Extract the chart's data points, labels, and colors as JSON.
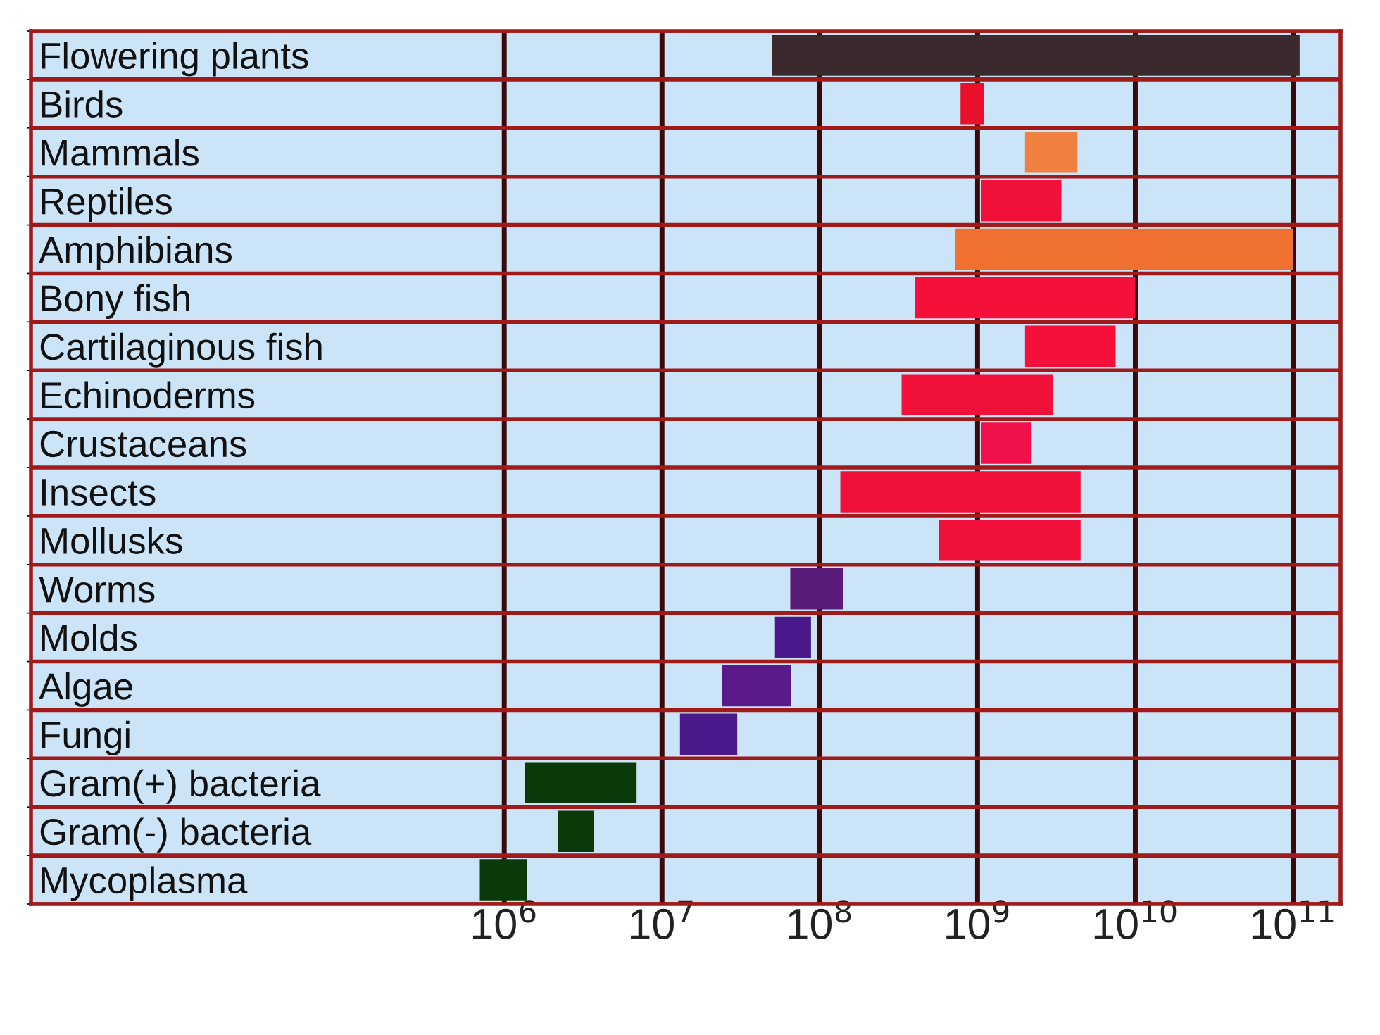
{
  "chart_data": {
    "type": "bar",
    "orientation": "horizontal",
    "log": "x",
    "categories": [
      "Flowering plants",
      "Birds",
      "Mammals",
      "Reptiles",
      "Amphibians",
      "Bony fish",
      "Cartilaginous fish",
      "Echinoderms",
      "Crustaceans",
      "Insects",
      "Mollusks",
      "Worms",
      "Molds",
      "Algae",
      "Fungi",
      "Gram(+) bacteria",
      "Gram(-) bacteria",
      "Mycoplasma"
    ],
    "base": [
      50000000,
      780000000,
      2000000000,
      1050000000,
      720000000,
      400000000,
      2000000000,
      330000000,
      1050000000,
      135000000,
      570000000,
      65000000,
      52000000,
      24000000,
      13000000,
      1350000,
      2200000,
      700000
    ],
    "values": [
      110000000000,
      320000000,
      2300000000,
      2350000000,
      99280000000,
      9600000000,
      5500000000,
      2670000000,
      1150000000,
      4365000000,
      3930000000,
      75000000,
      36000000,
      42000000,
      17000000,
      5550000,
      1500000,
      700000
    ],
    "colors": [
      "#3a2a2e",
      "#e8102a",
      "#f08040",
      "#f0103a",
      "#f07030",
      "#f5103a",
      "#f5103a",
      "#f0103a",
      "#f0104a",
      "#f0103a",
      "#f0103a",
      "#5a1a7a",
      "#4a1a8a",
      "#5a1a8a",
      "#4a1a8a",
      "#0a3a0a",
      "#0a3a0a",
      "#0a3a0a"
    ],
    "xlim": [
      1000,
      200000000000
    ],
    "xticks": [
      {
        "value": 1000000,
        "label": "10$^{6}$"
      },
      {
        "value": 10000000,
        "label": "10$^{7}$"
      },
      {
        "value": 100000000,
        "label": "10$^{8}$"
      },
      {
        "value": 1000000000,
        "label": "10$^{9}$"
      },
      {
        "value": 10000000000,
        "label": "10$^{10}$"
      },
      {
        "value": 100000000000,
        "label": "10$^{11}$"
      }
    ],
    "grid": true
  }
}
